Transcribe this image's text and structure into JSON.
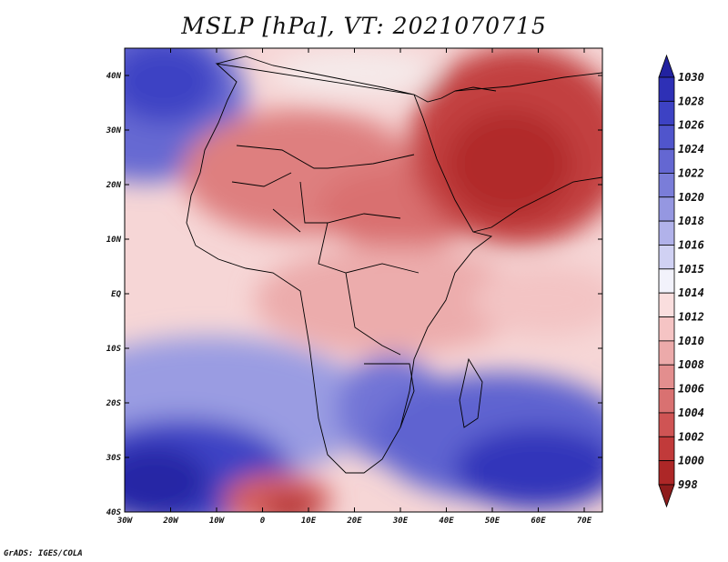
{
  "title": "MSLP [hPa], VT: 2021070715",
  "credit": "GrADS: IGES/COLA",
  "map": {
    "lat_ticks": [
      "40N",
      "30N",
      "20N",
      "10N",
      "EQ",
      "10S",
      "20S",
      "30S",
      "40S"
    ],
    "lon_ticks": [
      "30W",
      "20W",
      "10W",
      "0",
      "10E",
      "20E",
      "30E",
      "40E",
      "50E",
      "60E",
      "70E"
    ]
  },
  "colorbar": {
    "labels": [
      "1030",
      "1028",
      "1026",
      "1024",
      "1022",
      "1020",
      "1018",
      "1016",
      "1015",
      "1014",
      "1012",
      "1010",
      "1008",
      "1006",
      "1004",
      "1002",
      "1000",
      "998"
    ],
    "colors": [
      "#2222a0",
      "#2e30b6",
      "#3d42c4",
      "#5055cc",
      "#6467d2",
      "#7a7dd9",
      "#9597e1",
      "#b1b2ea",
      "#d0d1f3",
      "#f2f2fb",
      "#fadede",
      "#f5c4c4",
      "#ecaaaa",
      "#e38e8e",
      "#d97171",
      "#cf5454",
      "#c13a3a",
      "#ad2727",
      "#8e1c1c"
    ]
  }
}
